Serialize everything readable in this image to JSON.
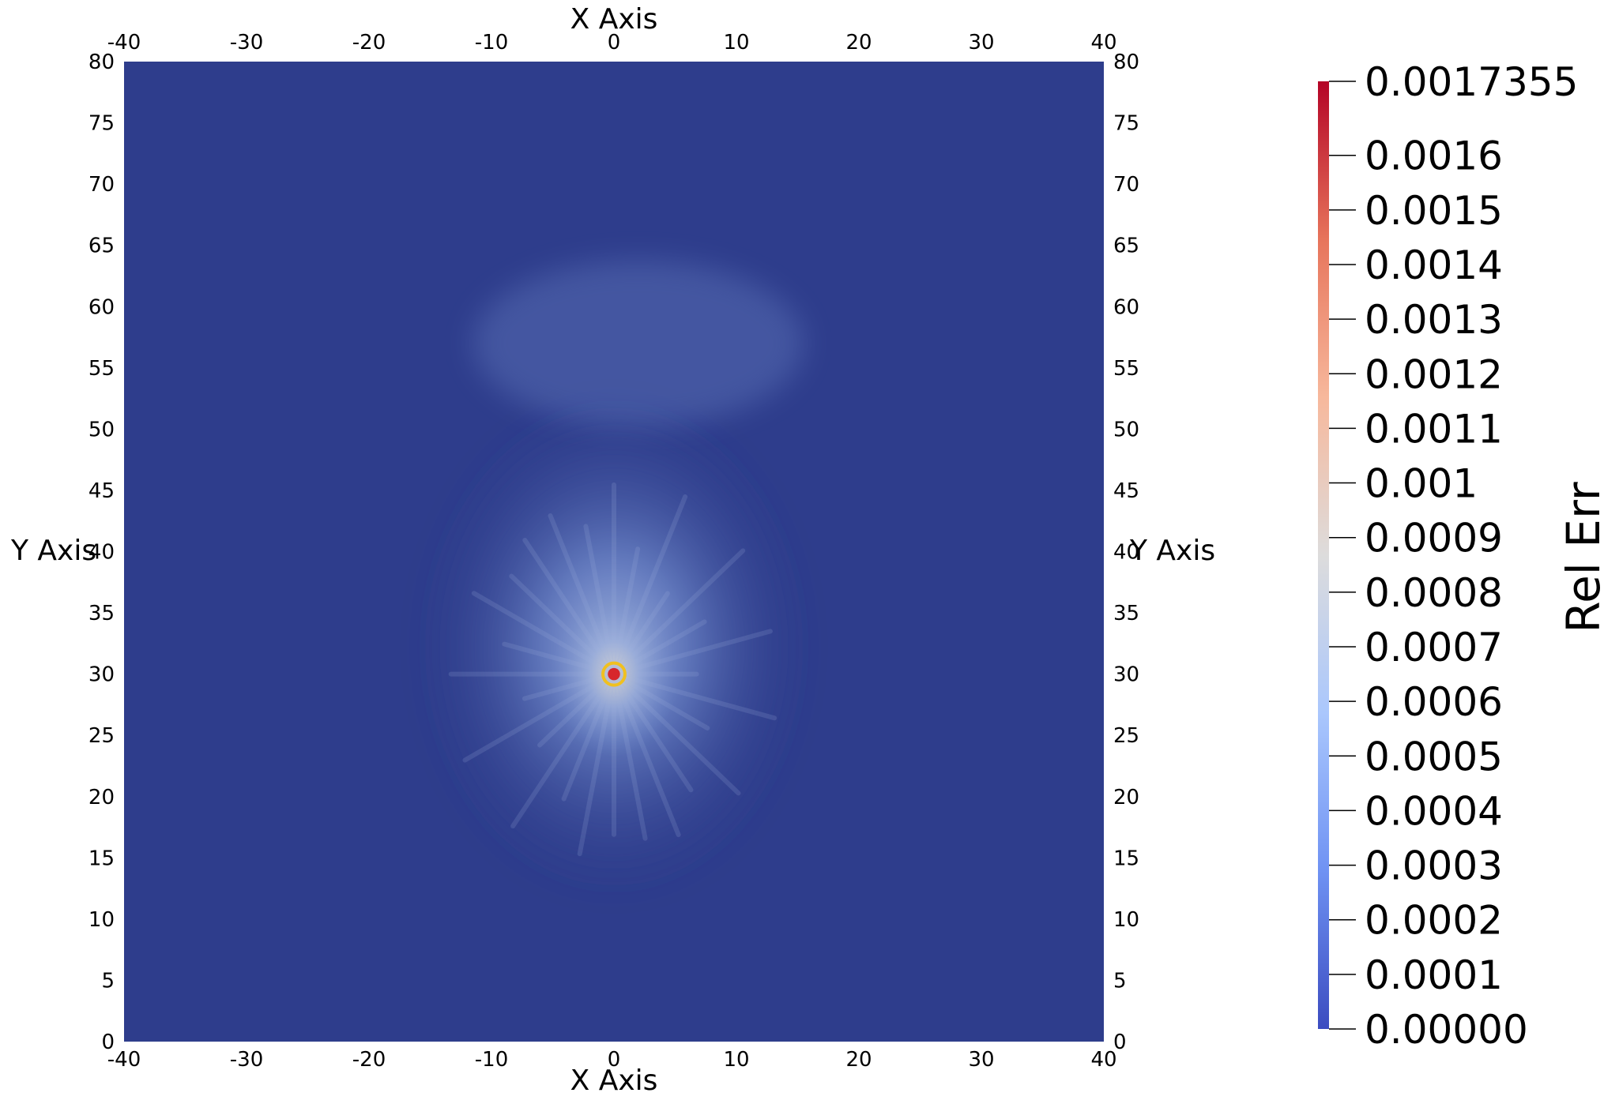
{
  "chart_data": {
    "type": "heatmap",
    "x_axis_title": "X Axis",
    "y_axis_title": "Y Axis",
    "xlim": [
      -40,
      40
    ],
    "ylim": [
      0,
      80
    ],
    "x_ticks": [
      -40,
      -30,
      -20,
      -10,
      0,
      10,
      20,
      30,
      40
    ],
    "y_ticks": [
      0,
      5,
      10,
      15,
      20,
      25,
      30,
      35,
      40,
      45,
      50,
      55,
      60,
      65,
      70,
      75,
      80
    ],
    "x_tick_labels": [
      "-40",
      "-30",
      "-20",
      "-10",
      "0",
      "10",
      "20",
      "30",
      "40"
    ],
    "y_tick_labels": [
      "0",
      "5",
      "10",
      "15",
      "20",
      "25",
      "30",
      "35",
      "40",
      "45",
      "50",
      "55",
      "60",
      "65",
      "70",
      "75",
      "80"
    ],
    "field": {
      "hotspot_center": [
        0,
        30
      ],
      "background_value": 0.0,
      "peak_value": 0.0017355,
      "description_values": {
        "diffuse_halo_radius": 15,
        "core_radius": 1
      }
    },
    "colorbar": {
      "title": "Rel Err",
      "range": [
        0.0,
        0.0017355
      ],
      "colormap": "coolwarm",
      "tick_values": [
        0.0,
        0.0001,
        0.0002,
        0.0003,
        0.0004,
        0.0005,
        0.0006,
        0.0007,
        0.0008,
        0.0009,
        0.001,
        0.0011,
        0.0012,
        0.0013,
        0.0014,
        0.0015,
        0.0016,
        0.0017355
      ],
      "tick_labels": [
        "0.00000",
        "0.0001",
        "0.0002",
        "0.0003",
        "0.0004",
        "0.0005",
        "0.0006",
        "0.0007",
        "0.0008",
        "0.0009",
        "0.001",
        "0.0011",
        "0.0012",
        "0.0013",
        "0.0014",
        "0.0015",
        "0.0016",
        "0.0017355"
      ],
      "colors": [
        "#3b4cc0",
        "#6f92f3",
        "#aac7fd",
        "#dddcdc",
        "#f7b89c",
        "#e7745b",
        "#b40426"
      ]
    },
    "colors": {
      "background_field": "#2e3d8c",
      "halo": "#6d86c8",
      "halo_inner": "#9fb2dc",
      "core": "#d7262b",
      "core_ring": "#f0c020"
    }
  }
}
